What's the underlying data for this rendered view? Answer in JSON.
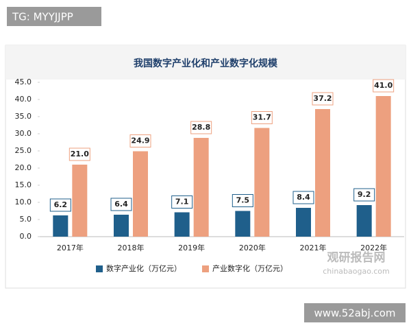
{
  "tag": "TG: MYYJJPP",
  "watermark": {
    "brand": "观研报告网",
    "site": "chinabaogao.com",
    "footer": "www.52abj.com"
  },
  "chart_data": {
    "type": "bar",
    "title": "我国数字产业化和产业数字化规模",
    "categories": [
      "2017年",
      "2018年",
      "2019年",
      "2020年",
      "2021年",
      "2022年"
    ],
    "series": [
      {
        "name": "数字产业化（万亿元）",
        "color": "#1f5f8b",
        "values": [
          6.2,
          6.4,
          7.1,
          7.5,
          8.4,
          9.2
        ],
        "value_labels": [
          "6.2",
          "6.4",
          "7.1",
          "7.5",
          "8.4",
          "9.2"
        ]
      },
      {
        "name": "产业数字化（万亿元）",
        "color": "#eda07f",
        "values": [
          21.0,
          24.9,
          28.8,
          31.7,
          37.2,
          41.0
        ],
        "value_labels": [
          "21.0",
          "24.9",
          "28.8",
          "31.7",
          "37.2",
          "41.0"
        ]
      }
    ],
    "ylim": [
      0,
      45
    ],
    "yticks": [
      {
        "value": 0,
        "label": "0.0"
      },
      {
        "value": 5,
        "label": "5.0"
      },
      {
        "value": 10,
        "label": "10.0"
      },
      {
        "value": 15,
        "label": "15.0"
      },
      {
        "value": 20,
        "label": "20.0"
      },
      {
        "value": 25,
        "label": "25.0"
      },
      {
        "value": 30,
        "label": "30.0"
      },
      {
        "value": 35,
        "label": "35.0"
      },
      {
        "value": 40,
        "label": "40.0"
      },
      {
        "value": 45,
        "label": "45.0"
      }
    ],
    "grid": false,
    "legend": "bottom"
  }
}
